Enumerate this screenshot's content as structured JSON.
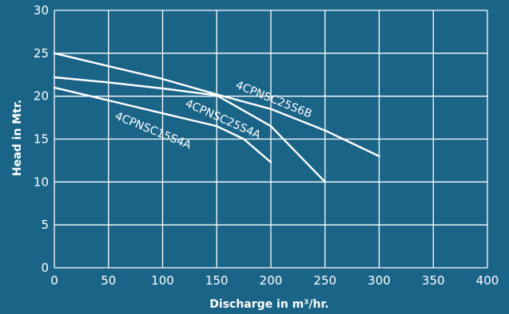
{
  "colors": {
    "background": "#1a6488",
    "grid": "#ffffff",
    "curve": "#ffffff",
    "text": "#ffffff"
  },
  "chart_data": {
    "type": "line",
    "title": "",
    "xlabel": "Discharge in m³/hr.",
    "ylabel": "Head in Mtr.",
    "xlim": [
      0,
      400
    ],
    "ylim": [
      0,
      30
    ],
    "xticks": [
      0,
      50,
      100,
      150,
      200,
      250,
      300,
      350,
      400
    ],
    "yticks": [
      0,
      5,
      10,
      15,
      20,
      25,
      30
    ],
    "grid": true,
    "legend": "none",
    "series": [
      {
        "name": "4CPNSC25S6B",
        "x": [
          0,
          50,
          100,
          150,
          200,
          250,
          300
        ],
        "y": [
          25,
          23.5,
          22,
          20.2,
          18.5,
          16,
          13
        ]
      },
      {
        "name": "4CPNSC25S4A",
        "x": [
          0,
          50,
          100,
          150,
          200,
          250
        ],
        "y": [
          22.2,
          21.6,
          20.9,
          20.1,
          16.5,
          10
        ]
      },
      {
        "name": "4CPNSC15S4A",
        "x": [
          0,
          50,
          100,
          150,
          175,
          200
        ],
        "y": [
          21,
          19.5,
          18,
          16.5,
          15,
          12.3
        ]
      }
    ]
  }
}
